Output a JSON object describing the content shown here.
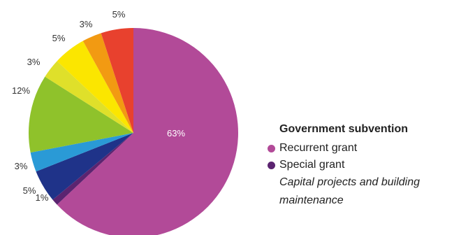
{
  "chart_data": {
    "type": "pie",
    "start_angle": "12 o'clock, clockwise",
    "slices": [
      {
        "label": "63%",
        "value": 63,
        "color": "#b24a98"
      },
      {
        "label": "1%",
        "value": 1,
        "color": "#5b2470"
      },
      {
        "label": "5%",
        "value": 5,
        "color": "#1f3389"
      },
      {
        "label": "3%",
        "value": 3,
        "color": "#2a9ad6"
      },
      {
        "label": "12%",
        "value": 12,
        "color": "#8fc22b"
      },
      {
        "label": "3%",
        "value": 3,
        "color": "#dfe02a"
      },
      {
        "label": "5%",
        "value": 5,
        "color": "#fbe600"
      },
      {
        "label": "3%",
        "value": 3,
        "color": "#f29a12"
      },
      {
        "label": "5%",
        "value": 5,
        "color": "#e8412e"
      }
    ],
    "legend": {
      "title": "Government subvention",
      "items": [
        {
          "label": "Recurrent grant",
          "color": "#b24a98"
        },
        {
          "label": "Special grant",
          "color": "#5b2470"
        }
      ],
      "note": "Capital projects and building maintenance"
    }
  }
}
